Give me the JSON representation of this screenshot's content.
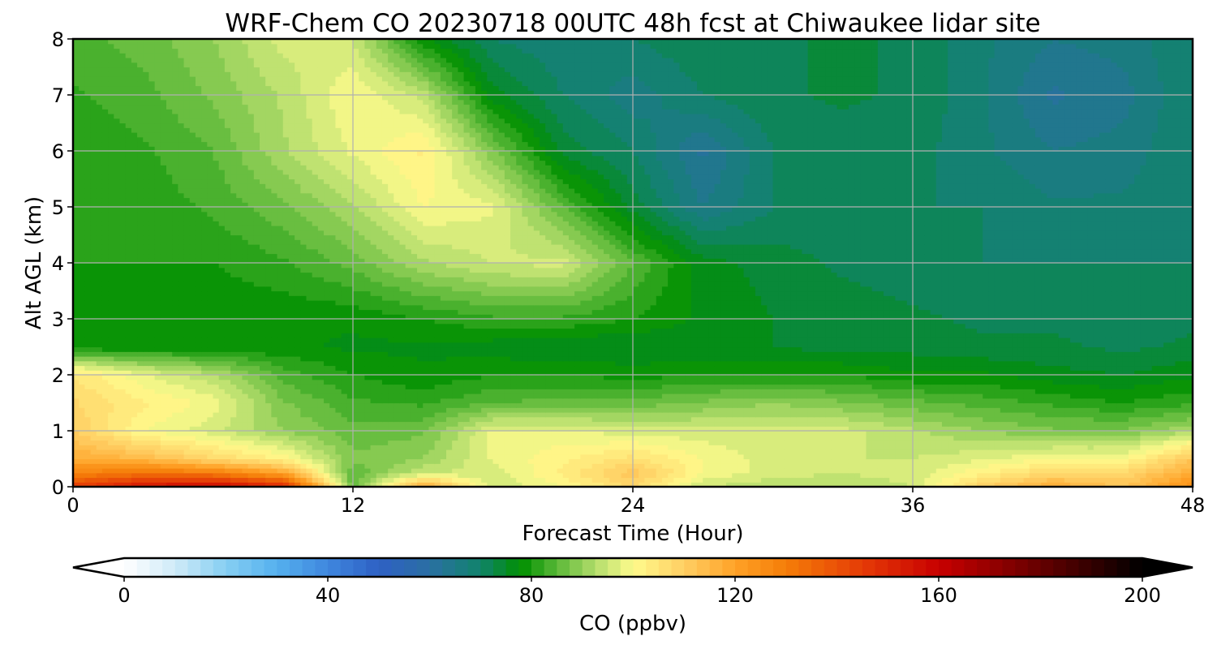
{
  "chart_data": {
    "type": "heatmap",
    "title": "WRF-Chem CO  20230718 00UTC 48h fcst at Chiwaukee lidar site",
    "xlabel": "Forecast Time (Hour)",
    "ylabel": "Alt AGL (km)",
    "xlim": [
      0,
      48
    ],
    "ylim": [
      0,
      8
    ],
    "x_ticks": [
      0,
      12,
      24,
      36,
      48
    ],
    "x_tick_labels": [
      "0",
      "12",
      "24",
      "36",
      "48"
    ],
    "y_ticks": [
      0,
      1,
      2,
      3,
      4,
      5,
      6,
      7,
      8
    ],
    "y_tick_labels": [
      "0",
      "1",
      "2",
      "3",
      "4",
      "5",
      "6",
      "7",
      "8"
    ],
    "grid": true,
    "z_field": {
      "x": [
        0,
        3,
        6,
        9,
        12,
        15,
        18,
        21,
        24,
        27,
        30,
        33,
        36,
        39,
        42,
        45,
        48
      ],
      "y": [
        0,
        0.25,
        0.5,
        1,
        1.5,
        2,
        2.5,
        3,
        4,
        5,
        6,
        7,
        8
      ],
      "values": [
        [
          145,
          155,
          160,
          150,
          85,
          120,
          95,
          100,
          108,
          95,
          93,
          93,
          95,
          110,
          118,
          112,
          125
        ],
        [
          128,
          132,
          130,
          120,
          85,
          95,
          96,
          103,
          112,
          100,
          96,
          95,
          96,
          102,
          108,
          108,
          118
        ],
        [
          118,
          115,
          108,
          102,
          88,
          90,
          98,
          102,
          106,
          100,
          96,
          95,
          95,
          97,
          100,
          100,
          112
        ],
        [
          110,
          100,
          96,
          90,
          86,
          87,
          98,
          98,
          96,
          96,
          96,
          96,
          93,
          90,
          88,
          88,
          92
        ],
        [
          108,
          103,
          99,
          88,
          83,
          82,
          85,
          86,
          86,
          88,
          90,
          88,
          86,
          84,
          82,
          80,
          82
        ],
        [
          105,
          98,
          93,
          84,
          80,
          78,
          80,
          80,
          79,
          80,
          80,
          80,
          78,
          78,
          76,
          75,
          77
        ],
        [
          78,
          78,
          78,
          78,
          77,
          77,
          76,
          75,
          75,
          75,
          75,
          74,
          74,
          73,
          73,
          72,
          73
        ],
        [
          78,
          78,
          78,
          78,
          78,
          80,
          82,
          82,
          80,
          77,
          75,
          74,
          73,
          72,
          72,
          71,
          72
        ],
        [
          80,
          80,
          80,
          82,
          86,
          92,
          95,
          96,
          85,
          76,
          74,
          72,
          71,
          70,
          70,
          70,
          70
        ],
        [
          80,
          81,
          83,
          87,
          92,
          100,
          98,
          85,
          74,
          65,
          70,
          70,
          70,
          70,
          68,
          68,
          70
        ],
        [
          80,
          82,
          85,
          92,
          98,
          103,
          88,
          74,
          70,
          62,
          70,
          71,
          71,
          68,
          65,
          66,
          70
        ],
        [
          82,
          84,
          88,
          93,
          100,
          94,
          76,
          70,
          66,
          70,
          72,
          73,
          72,
          68,
          62,
          64,
          70
        ],
        [
          84,
          86,
          90,
          96,
          95,
          78,
          70,
          68,
          70,
          72,
          72,
          73,
          72,
          68,
          65,
          66,
          70
        ]
      ]
    },
    "colorbar": {
      "label": "CO  (ppbv)",
      "min": 0,
      "max": 200,
      "ticks": [
        0,
        40,
        80,
        120,
        160,
        200
      ],
      "tick_labels": [
        "0",
        "40",
        "80",
        "120",
        "160",
        "200"
      ],
      "extend": "both",
      "color_stops": [
        {
          "value": 0,
          "color": "#ffffff"
        },
        {
          "value": 10,
          "color": "#cfeaf8"
        },
        {
          "value": 20,
          "color": "#86cff2"
        },
        {
          "value": 30,
          "color": "#55b0ee"
        },
        {
          "value": 40,
          "color": "#3f87de"
        },
        {
          "value": 50,
          "color": "#2e60c4"
        },
        {
          "value": 60,
          "color": "#2a6fa3"
        },
        {
          "value": 70,
          "color": "#11836b"
        },
        {
          "value": 78,
          "color": "#009000"
        },
        {
          "value": 85,
          "color": "#5ab838"
        },
        {
          "value": 93,
          "color": "#b7df6e"
        },
        {
          "value": 100,
          "color": "#fffb8c"
        },
        {
          "value": 110,
          "color": "#ffce63"
        },
        {
          "value": 120,
          "color": "#ffa227"
        },
        {
          "value": 130,
          "color": "#f57d08"
        },
        {
          "value": 145,
          "color": "#e53b06"
        },
        {
          "value": 160,
          "color": "#c80000"
        },
        {
          "value": 175,
          "color": "#7e0000"
        },
        {
          "value": 190,
          "color": "#330000"
        },
        {
          "value": 200,
          "color": "#000000"
        }
      ]
    }
  }
}
